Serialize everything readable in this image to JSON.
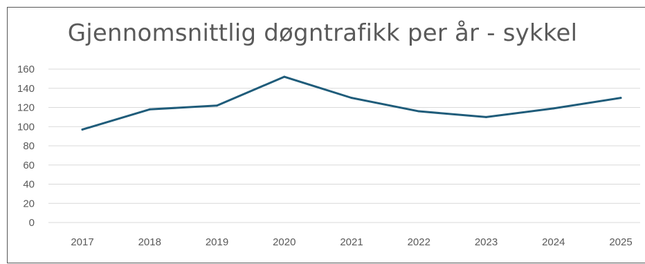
{
  "chart_data": {
    "type": "line",
    "title": "Gjennomsnittlig døgntrafikk per år - sykkel",
    "xlabel": "",
    "ylabel": "",
    "categories": [
      "2017",
      "2018",
      "2019",
      "2020",
      "2021",
      "2022",
      "2023",
      "2024",
      "2025"
    ],
    "series": [
      {
        "values": [
          97,
          118,
          122,
          152,
          130,
          116,
          110,
          119,
          130
        ]
      }
    ],
    "ylim": [
      0,
      160
    ],
    "yticks": [
      "0",
      "20",
      "40",
      "60",
      "80",
      "100",
      "120",
      "140",
      "160"
    ],
    "grid": true,
    "legend": "none"
  },
  "colors": {
    "series": "#1f5c7a",
    "grid": "#d9d9d9",
    "axis_text": "#595959",
    "title_text": "#5a5a5a"
  }
}
